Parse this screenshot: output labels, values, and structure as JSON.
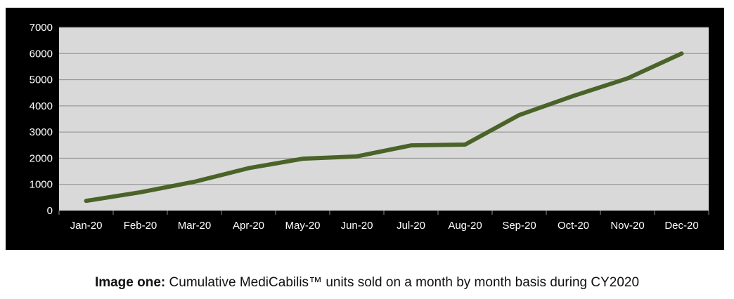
{
  "chart_data": {
    "type": "line",
    "title": "",
    "xlabel": "",
    "ylabel": "",
    "categories": [
      "Jan-20",
      "Feb-20",
      "Mar-20",
      "Apr-20",
      "May-20",
      "Jun-20",
      "Jul-20",
      "Aug-20",
      "Sep-20",
      "Oct-20",
      "Nov-20",
      "Dec-20"
    ],
    "series": [
      {
        "name": "Cumulative MediCabilis units sold",
        "values": [
          370,
          700,
          1100,
          1620,
          1980,
          2070,
          2490,
          2520,
          3650,
          4380,
          5050,
          6000
        ],
        "color": "#4a6328"
      }
    ],
    "ylim": [
      0,
      7000
    ],
    "yticks": [
      0,
      1000,
      2000,
      3000,
      4000,
      5000,
      6000,
      7000
    ],
    "grid": true,
    "legend": "none",
    "colors": {
      "frame_bg": "#000000",
      "plot_bg": "#d9d9d9",
      "grid": "#8c8c8c",
      "tick_text": "#ffffff"
    }
  },
  "caption": {
    "label": "Image one:",
    "text": " Cumulative MediCabilis™ units sold on a month by month basis during CY2020"
  }
}
